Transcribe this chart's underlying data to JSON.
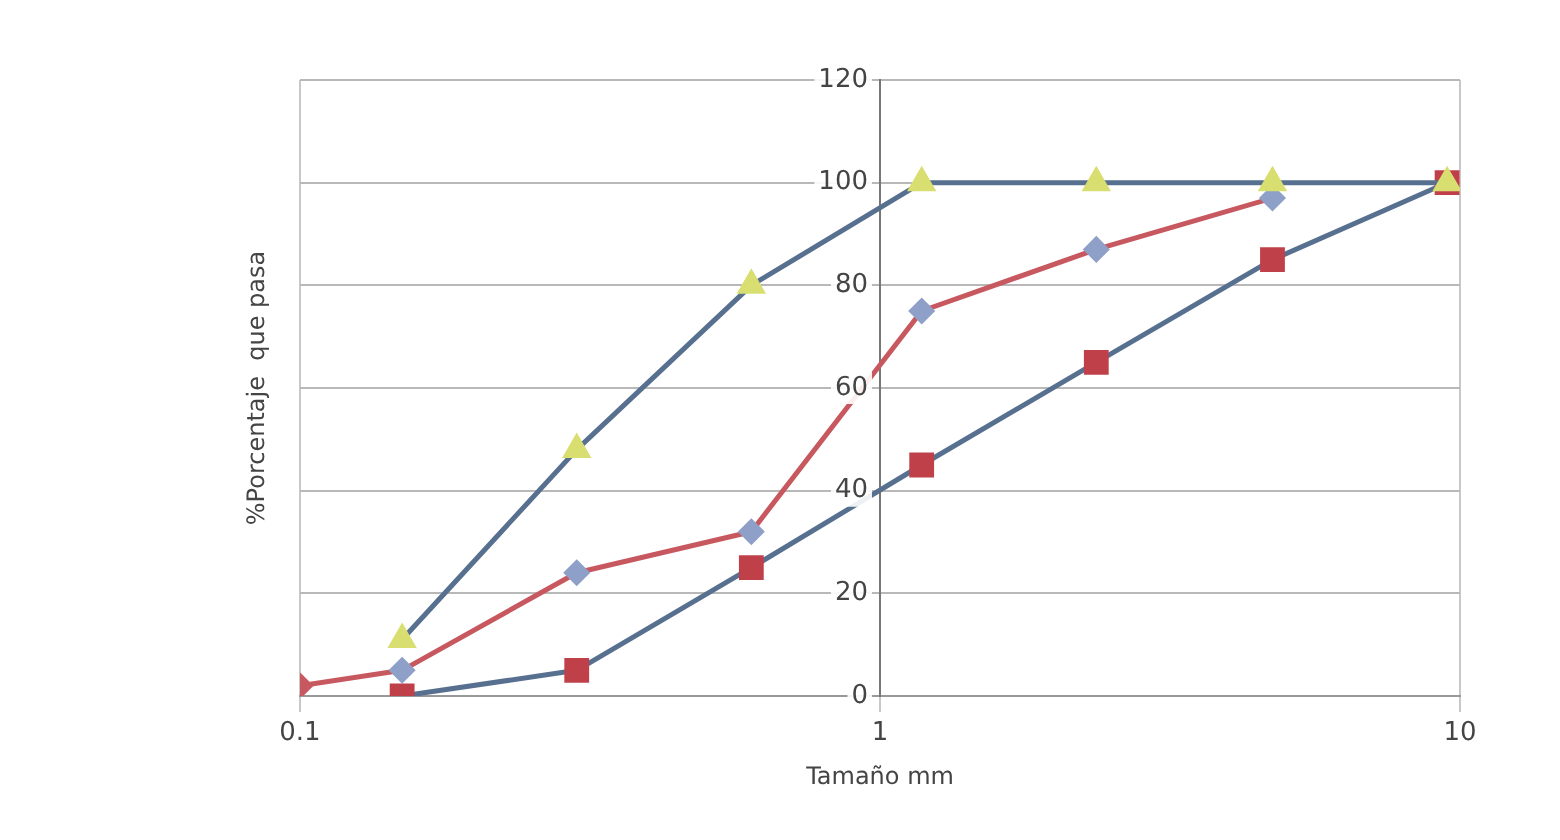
{
  "chart_data": {
    "type": "line",
    "xlabel": "Tamaño mm",
    "ylabel": "%Porcentaje  que pasa",
    "log": "x",
    "xlim": [
      0.1,
      10
    ],
    "xticks": [
      0.1,
      1,
      10
    ],
    "ylim": [
      0,
      120
    ],
    "yticks": [
      0,
      20,
      40,
      60,
      80,
      100,
      120
    ],
    "grid": true,
    "legend": false,
    "series": [
      {
        "x": [
          0.1,
          0.15,
          0.3,
          0.6,
          1.18,
          2.36,
          4.75
        ],
        "values": [
          2,
          5,
          24,
          32,
          75,
          87,
          97
        ],
        "color": "#c8585f",
        "colors": [
          "#c8585f",
          "#8ea0c8",
          "#8ea0c8",
          "#8ea0c8",
          "#8ea0c8",
          "#8ea0c8",
          "#8ea0c8"
        ],
        "marker": "diamond"
      },
      {
        "x": [
          0.15,
          0.3,
          0.6,
          1.18,
          2.36,
          4.75,
          9.5
        ],
        "values": [
          0,
          5,
          25,
          45,
          65,
          85,
          100
        ],
        "color": "#58708f",
        "colors": [
          "#c0404a",
          "#c0404a",
          "#c0404a",
          "#c0404a",
          "#c0404a",
          "#c0404a",
          "#c0404a"
        ],
        "marker": "square"
      },
      {
        "x": [
          0.15,
          0.3,
          0.6,
          1.18,
          2.36,
          4.75,
          9.5
        ],
        "values": [
          11,
          48,
          80,
          100,
          100,
          100,
          100
        ],
        "color": "#58708f",
        "colors": [
          "#d8df70",
          "#d8df70",
          "#d8df70",
          "#d8df70",
          "#d8df70",
          "#d8df70",
          "#d8df70"
        ],
        "marker": "triangle"
      }
    ]
  }
}
